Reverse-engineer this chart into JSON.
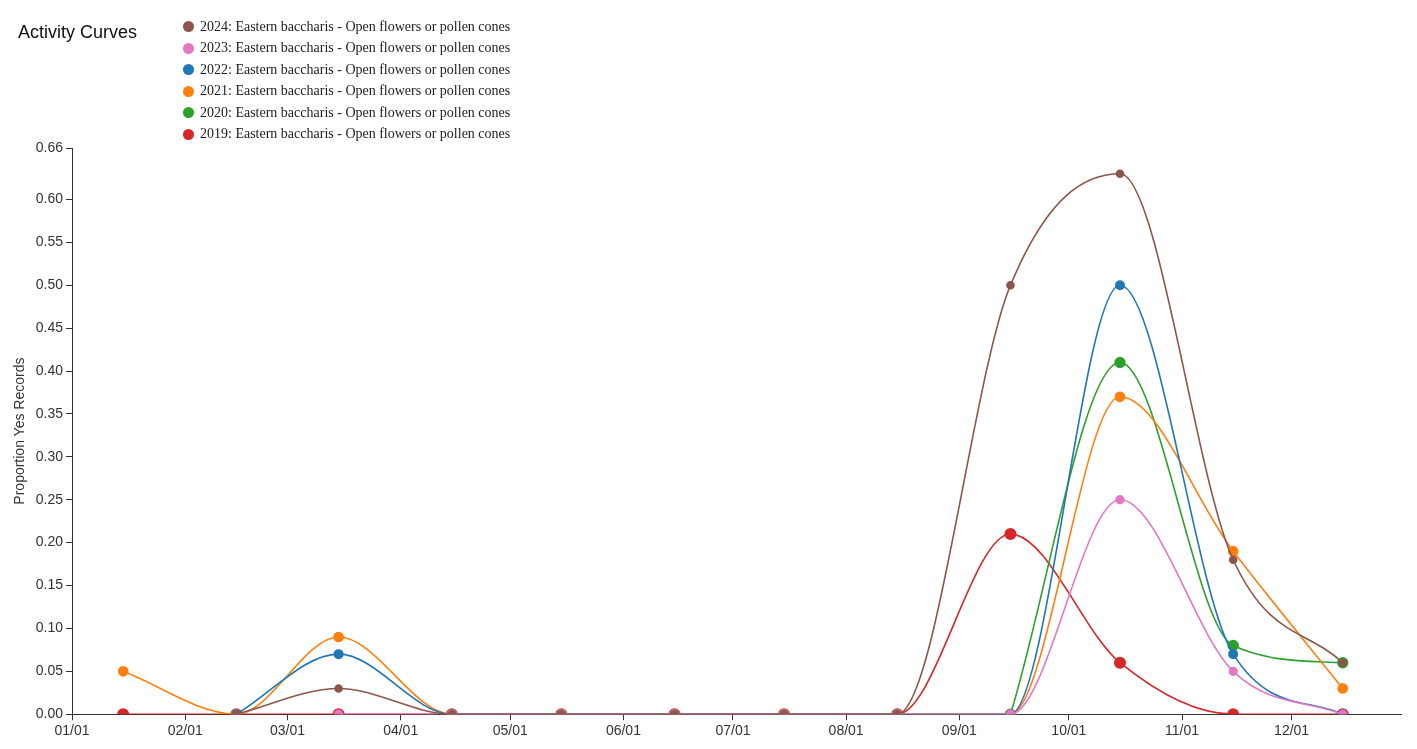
{
  "chart_data": {
    "type": "line",
    "title": "Activity Curves",
    "ylabel": "Proportion Yes Records",
    "x": [
      "--01-15",
      "--02-15",
      "--03-15",
      "--04-15",
      "--05-15",
      "--06-15",
      "--07-15",
      "--08-15",
      "--09-15",
      "--10-15",
      "--11-15",
      "--12-15"
    ],
    "series": [
      {
        "name": "2024: Eastern baccharis - Open flowers or pollen cones",
        "color": "#8c564b",
        "values": [
          null,
          0,
          0.03,
          0,
          0,
          0,
          0,
          0,
          0.5,
          0.63,
          0.18,
          0.06
        ]
      },
      {
        "name": "2023: Eastern baccharis - Open flowers or pollen cones",
        "color": "#e377c2",
        "values": [
          null,
          null,
          0,
          0,
          0,
          0,
          0,
          0,
          0,
          0.25,
          0.05,
          0
        ]
      },
      {
        "name": "2022: Eastern baccharis - Open flowers or pollen cones",
        "color": "#1f77b4",
        "values": [
          null,
          0,
          0.07,
          0,
          0,
          0,
          0,
          0,
          0,
          0.5,
          0.07,
          0
        ]
      },
      {
        "name": "2021: Eastern baccharis - Open flowers or pollen cones",
        "color": "#ff7f0e",
        "values": [
          0.05,
          0,
          0.09,
          0,
          0,
          0,
          0,
          0,
          0,
          0.37,
          0.19,
          0.03
        ]
      },
      {
        "name": "2020: Eastern baccharis - Open flowers or pollen cones",
        "color": "#2ca02c",
        "values": [
          null,
          null,
          null,
          null,
          null,
          null,
          null,
          null,
          0,
          0.41,
          0.08,
          0.06
        ]
      },
      {
        "name": "2019: Eastern baccharis - Open flowers or pollen cones",
        "color": "#d62728",
        "values": [
          0,
          0,
          0,
          0,
          0,
          0,
          0,
          0,
          0.21,
          0.06,
          0,
          0
        ]
      }
    ],
    "xlim": [
      "--01-01",
      "--12-31"
    ],
    "xticks": [
      {
        "value": "--01-01",
        "label": "01/01"
      },
      {
        "value": "--02-01",
        "label": "02/01"
      },
      {
        "value": "--03-01",
        "label": "03/01"
      },
      {
        "value": "--04-01",
        "label": "04/01"
      },
      {
        "value": "--05-01",
        "label": "05/01"
      },
      {
        "value": "--06-01",
        "label": "06/01"
      },
      {
        "value": "--07-01",
        "label": "07/01"
      },
      {
        "value": "--08-01",
        "label": "08/01"
      },
      {
        "value": "--09-01",
        "label": "09/01"
      },
      {
        "value": "--10-01",
        "label": "10/01"
      },
      {
        "value": "--11-01",
        "label": "11/01"
      },
      {
        "value": "--12-01",
        "label": "12/01"
      }
    ],
    "ylim": [
      0,
      0.66
    ],
    "yticks": [
      {
        "value": 0,
        "label": "0.00"
      },
      {
        "value": 0.05,
        "label": "0.05"
      },
      {
        "value": 0.1,
        "label": "0.10"
      },
      {
        "value": 0.15,
        "label": "0.15"
      },
      {
        "value": 0.2,
        "label": "0.20"
      },
      {
        "value": 0.25,
        "label": "0.25"
      },
      {
        "value": 0.3,
        "label": "0.30"
      },
      {
        "value": 0.35,
        "label": "0.35"
      },
      {
        "value": 0.4,
        "label": "0.40"
      },
      {
        "value": 0.45,
        "label": "0.45"
      },
      {
        "value": 0.5,
        "label": "0.50"
      },
      {
        "value": 0.55,
        "label": "0.55"
      },
      {
        "value": 0.6,
        "label": "0.60"
      },
      {
        "value": 0.66,
        "label": "0.66"
      }
    ],
    "grid": false,
    "legend": "top left",
    "marker": "circle",
    "line_style": "solid"
  }
}
